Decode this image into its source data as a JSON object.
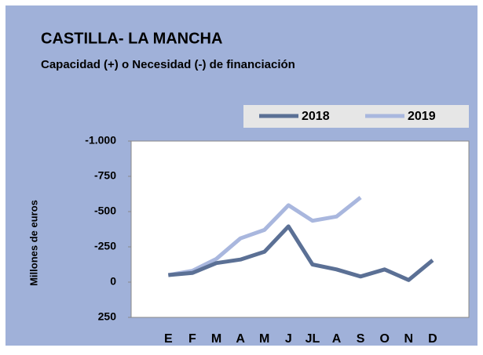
{
  "chart_data": {
    "type": "line",
    "title": "CASTILLA- LA MANCHA",
    "subtitle": "Capacidad (+) o Necesidad (-) de financiación",
    "y_label": "Millones de euros",
    "categories": [
      "E",
      "F",
      "M",
      "A",
      "M",
      "J",
      "JL",
      "A",
      "S",
      "O",
      "N",
      "D"
    ],
    "series": [
      {
        "name": "2018",
        "color": "#5b7095",
        "values": [
          -50,
          -65,
          -135,
          -160,
          -215,
          -395,
          -125,
          -90,
          -40,
          -90,
          -15,
          -155
        ]
      },
      {
        "name": "2019",
        "color": "#a9b7de",
        "values": [
          -50,
          -80,
          -165,
          -310,
          -370,
          -545,
          -435,
          -465,
          -600,
          null,
          null,
          null
        ]
      }
    ],
    "ylim": [
      250,
      -1000
    ],
    "yticks": [
      {
        "value": -1000,
        "label": "-1.000"
      },
      -750,
      -500,
      -250,
      0,
      250
    ],
    "grid": false
  }
}
